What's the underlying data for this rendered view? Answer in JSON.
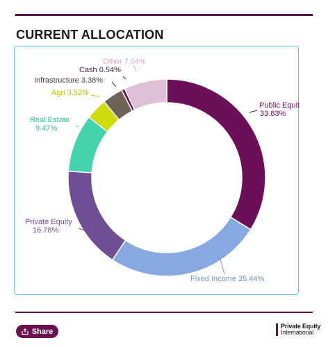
{
  "header": {
    "title": "CURRENT ALLOCATION"
  },
  "footer": {
    "share_label": "Share",
    "brand_line1": "Private Equity",
    "brand_line2": "International"
  },
  "chart_data": {
    "type": "donut",
    "slices": [
      {
        "name": "Public Equities",
        "label": "Public Equities",
        "value_label": "33.83%",
        "value": 33.83,
        "color": "#6b0f5a",
        "text_color": "#6b0f5a"
      },
      {
        "name": "Fixed Income",
        "label": "Fixed Income 25.44%",
        "value_label": "",
        "value": 25.44,
        "color": "#86a9e1",
        "text_color": "#6f93cf"
      },
      {
        "name": "Private Equity",
        "label": "Private Equity",
        "value_label": "16.78%",
        "value": 16.78,
        "color": "#6e4e94",
        "text_color": "#6e4e94"
      },
      {
        "name": "Real Estate",
        "label": "Real Estate",
        "value_label": "9.47%",
        "value": 9.47,
        "color": "#44d3ad",
        "text_color": "#2fc29d"
      },
      {
        "name": "Agri",
        "label": "Agri 3.52%",
        "value_label": "",
        "value": 3.52,
        "color": "#cfdc0c",
        "text_color": "#b9c400"
      },
      {
        "name": "Infrastructure",
        "label": "Infrastructure 3.38%",
        "value_label": "",
        "value": 3.38,
        "color": "#6f6257",
        "text_color": "#4a4040"
      },
      {
        "name": "Cash",
        "label": "Cash 0.54%",
        "value_label": "",
        "value": 0.54,
        "color": "#6b0f5a",
        "text_color": "#4a2040"
      },
      {
        "name": "Other",
        "label": "Other 7.04%",
        "value_label": "",
        "value": 7.04,
        "color": "#dfc0d9",
        "text_color": "#d3a9cb"
      }
    ]
  }
}
